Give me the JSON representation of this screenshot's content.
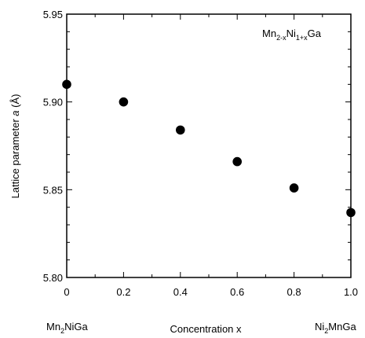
{
  "chart_data": {
    "type": "scatter",
    "xlabel": "Concentration x",
    "ylabel_main": "Lattice parameter ",
    "ylabel_var": "a",
    "ylabel_unit": " (Å)",
    "xlim": [
      0,
      1.0
    ],
    "ylim": [
      5.8,
      5.95
    ],
    "x_ticks": [
      "0",
      "0.2",
      "0.4",
      "0.6",
      "0.8",
      "1.0"
    ],
    "y_ticks": [
      "5.80",
      "5.85",
      "5.90",
      "5.95"
    ],
    "grid": false,
    "x": [
      0,
      0.2,
      0.4,
      0.6,
      0.8,
      1.0
    ],
    "y": [
      5.91,
      5.9,
      5.884,
      5.866,
      5.851,
      5.837
    ],
    "annotation": {
      "base1": "Mn",
      "sub1": "2-x",
      "base2": "Ni",
      "sub2": "1+x",
      "base3": "Ga"
    },
    "end_label_left": {
      "base1": "Mn",
      "sub1": "2",
      "base2": "NiGa"
    },
    "end_label_right": {
      "base1": "Ni",
      "sub1": "2",
      "base2": "MnGa"
    }
  }
}
